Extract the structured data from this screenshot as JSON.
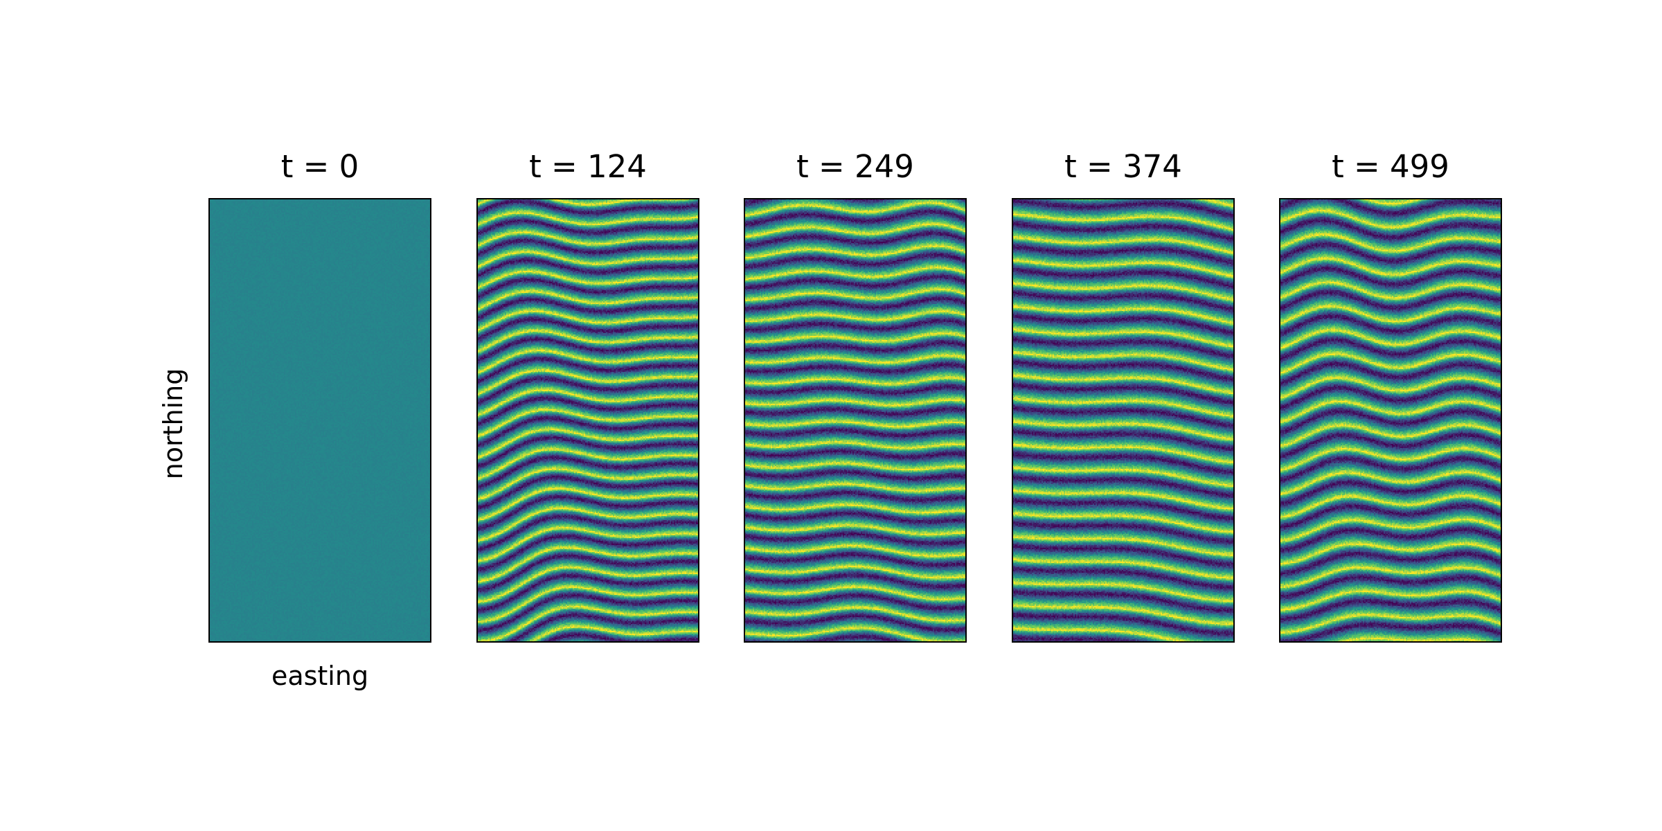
{
  "chart_data": {
    "type": "heatmap",
    "xlabel": "easting",
    "ylabel": "northing",
    "colormap": [
      "#440154",
      "#3b528b",
      "#21918c",
      "#5ec962",
      "#fde725"
    ],
    "panels": [
      {
        "title": "t = 0",
        "t": 0,
        "pattern": "uniform-noise",
        "base_value": 0.45
      },
      {
        "title": "t = 124",
        "t": 124,
        "pattern": "dune-stripes",
        "wavelength_fraction": 0.045
      },
      {
        "title": "t = 249",
        "t": 249,
        "pattern": "dune-stripes",
        "wavelength_fraction": 0.048
      },
      {
        "title": "t = 374",
        "t": 374,
        "pattern": "dune-stripes",
        "wavelength_fraction": 0.052
      },
      {
        "title": "t = 499",
        "t": 499,
        "pattern": "dune-stripes",
        "wavelength_fraction": 0.054
      }
    ]
  }
}
